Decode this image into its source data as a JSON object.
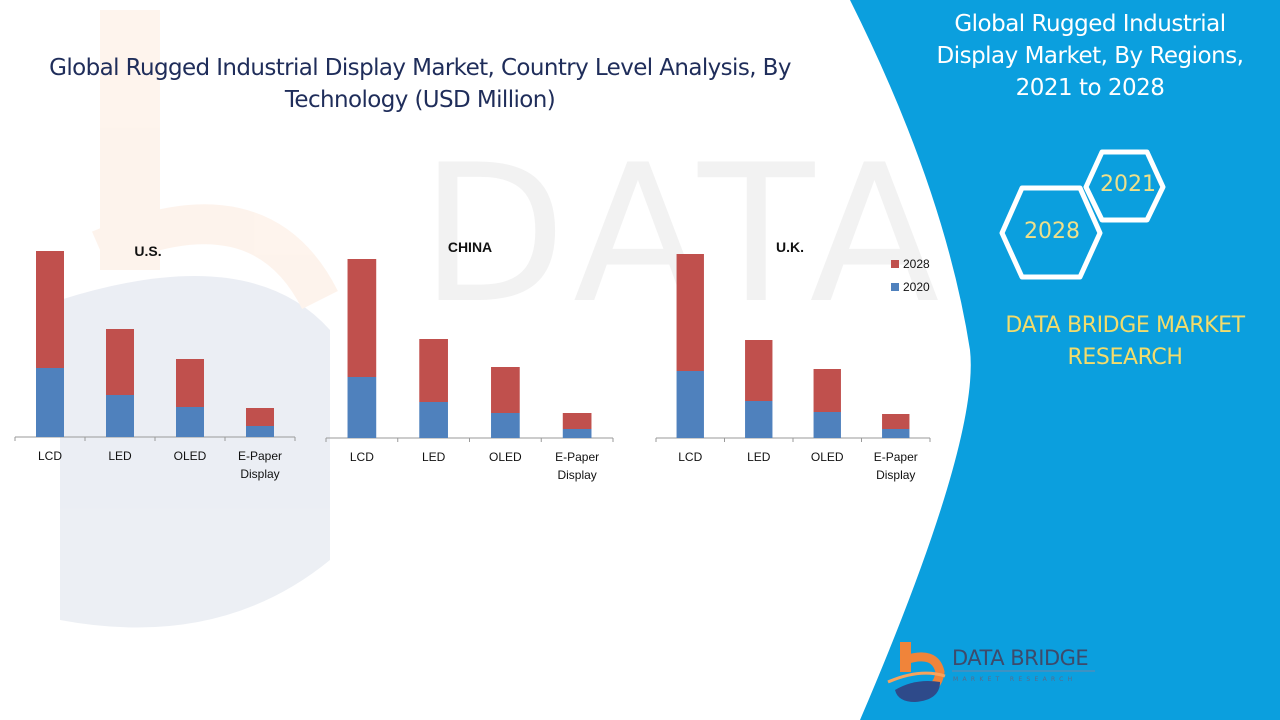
{
  "header": {
    "title_line1": "Global Rugged Industrial Display Market, Country Level Analysis, By",
    "title_line2": "Technology (USD Million)"
  },
  "side_panel": {
    "title_line1": "Global Rugged Industrial",
    "title_line2": "Display Market, By Regions,",
    "title_line3": "2021 to 2028",
    "hex_years": [
      "2021",
      "2028"
    ],
    "brand_line1": "DATA BRIDGE MARKET",
    "brand_line2": "RESEARCH",
    "logo_text": "DATA BRIDGE",
    "logo_subtext": "MARKET RESEARCH",
    "colors": {
      "panel": "#0b9fde",
      "brand_text": "#f3dc6b",
      "logo_orange": "#f0843a",
      "logo_navy": "#2e4a8a"
    }
  },
  "legend": [
    {
      "label": "2028",
      "color": "#c0504d"
    },
    {
      "label": "2020",
      "color": "#4f81bd"
    }
  ],
  "chart_data": [
    {
      "type": "bar",
      "stacked": true,
      "title": "U.S.",
      "categories": [
        "LCD",
        "LED",
        "OLED",
        "E-Paper Display"
      ],
      "series": [
        {
          "name": "2020",
          "values": [
            69,
            42,
            30,
            11
          ]
        },
        {
          "name": "2028",
          "values": [
            117,
            66,
            48,
            18
          ]
        }
      ],
      "xlabel": "",
      "ylabel": "",
      "ylim": [
        0,
        190
      ],
      "grid": false,
      "units": "relative (no axis values shown)"
    },
    {
      "type": "bar",
      "stacked": true,
      "title": "CHINA",
      "categories": [
        "LCD",
        "LED",
        "OLED",
        "E-Paper Display"
      ],
      "series": [
        {
          "name": "2020",
          "values": [
            61,
            36,
            25,
            9
          ]
        },
        {
          "name": "2028",
          "values": [
            118,
            63,
            46,
            16
          ]
        }
      ],
      "xlabel": "",
      "ylabel": "",
      "ylim": [
        0,
        190
      ],
      "grid": false,
      "units": "relative (no axis values shown)"
    },
    {
      "type": "bar",
      "stacked": true,
      "title": "U.K.",
      "categories": [
        "LCD",
        "LED",
        "OLED",
        "E-Paper Display"
      ],
      "series": [
        {
          "name": "2020",
          "values": [
            67,
            37,
            26,
            9
          ]
        },
        {
          "name": "2028",
          "values": [
            117,
            61,
            43,
            15
          ]
        }
      ],
      "xlabel": "",
      "ylabel": "",
      "ylim": [
        0,
        190
      ],
      "grid": false,
      "legend": "right",
      "units": "relative (no axis values shown)"
    }
  ]
}
